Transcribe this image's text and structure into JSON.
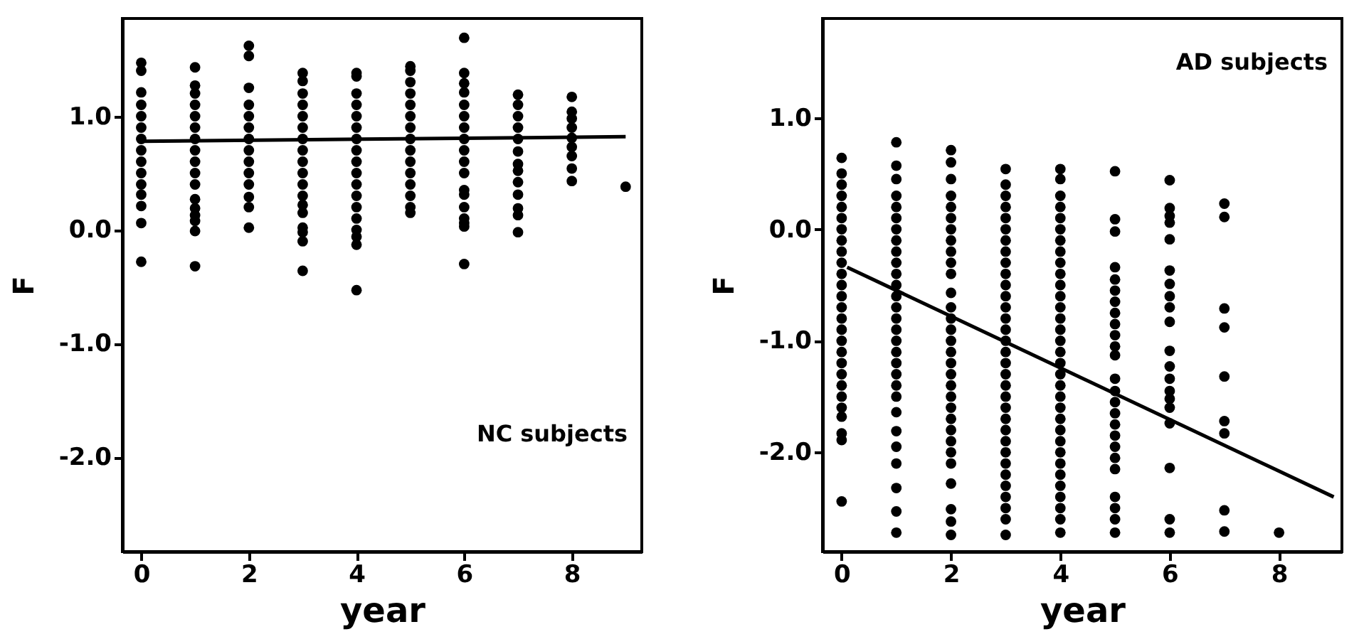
{
  "chart_data": [
    {
      "type": "scatter",
      "xlabel": "year",
      "ylabel": "F",
      "annotations": [
        "NC subjects"
      ],
      "xlim": [
        -0.35,
        9.3
      ],
      "ylim": [
        -2.83,
        1.86
      ],
      "xticks": [
        0,
        2,
        4,
        6,
        8
      ],
      "yticks": [
        {
          "value": 1,
          "label": "1.0"
        },
        {
          "value": 0,
          "label": "0.0"
        },
        {
          "value": -1,
          "label": "-1.0"
        },
        {
          "value": -2,
          "label": "-2.0"
        }
      ],
      "grid": false,
      "series": [
        {
          "color": "#000000",
          "marker": "circle",
          "x": [
            0,
            0,
            0,
            0,
            0,
            0,
            0,
            0,
            0,
            0,
            0,
            0,
            0,
            0,
            0,
            1,
            1,
            1,
            1,
            1,
            1,
            1,
            1,
            1,
            1,
            1,
            1,
            1,
            1,
            1,
            1,
            1,
            2,
            2,
            2,
            2,
            2,
            2,
            2,
            2,
            2,
            2,
            2,
            2,
            2,
            2,
            3,
            3,
            3,
            3,
            3,
            3,
            3,
            3,
            3,
            3,
            3,
            3,
            3,
            3,
            3,
            3,
            3,
            3,
            4,
            4,
            4,
            4,
            4,
            4,
            4,
            4,
            4,
            4,
            4,
            4,
            4,
            4,
            4,
            4,
            4,
            4,
            5,
            5,
            5,
            5,
            5,
            5,
            5,
            5,
            5,
            5,
            5,
            5,
            5,
            5,
            5,
            6,
            6,
            6,
            6,
            6,
            6,
            6,
            6,
            6,
            6,
            6,
            6,
            6,
            6,
            6,
            6,
            6,
            6,
            7,
            7,
            7,
            7,
            7,
            7,
            7,
            7,
            7,
            7,
            7,
            7,
            7,
            8,
            8,
            8,
            8,
            8,
            8,
            8,
            8,
            8,
            9
          ],
          "values": [
            1.47,
            1.4,
            1.21,
            1.1,
            1.0,
            0.9,
            0.8,
            0.7,
            0.6,
            0.5,
            0.4,
            0.31,
            0.21,
            0.06,
            -0.28,
            1.43,
            1.27,
            1.2,
            1.1,
            1.0,
            0.9,
            0.8,
            0.7,
            0.6,
            0.5,
            0.4,
            0.27,
            0.19,
            0.13,
            0.08,
            -0.01,
            -0.32,
            1.62,
            1.53,
            1.25,
            1.1,
            1.0,
            0.9,
            0.8,
            0.7,
            0.6,
            0.5,
            0.4,
            0.29,
            0.2,
            0.02,
            1.38,
            1.31,
            1.2,
            1.1,
            1.0,
            0.9,
            0.8,
            0.7,
            0.6,
            0.5,
            0.4,
            0.3,
            0.22,
            0.15,
            0.02,
            -0.02,
            -0.1,
            -0.36,
            1.38,
            1.35,
            1.2,
            1.1,
            1.0,
            0.9,
            0.8,
            0.7,
            0.6,
            0.5,
            0.4,
            0.3,
            0.2,
            0.1,
            0.0,
            -0.06,
            -0.13,
            -0.53,
            1.44,
            1.4,
            1.3,
            1.2,
            1.1,
            1.0,
            0.9,
            0.8,
            0.7,
            0.6,
            0.5,
            0.4,
            0.3,
            0.2,
            0.15,
            1.69,
            1.38,
            1.29,
            1.21,
            1.1,
            1.0,
            0.9,
            0.8,
            0.7,
            0.6,
            0.5,
            0.35,
            0.31,
            0.2,
            0.1,
            0.06,
            0.03,
            -0.3,
            1.19,
            1.1,
            1.0,
            0.9,
            0.8,
            0.69,
            0.58,
            0.52,
            0.42,
            0.31,
            0.19,
            0.13,
            -0.02,
            1.17,
            1.04,
            0.98,
            0.9,
            0.81,
            0.73,
            0.65,
            0.54,
            0.43,
            0.38
          ]
        },
        {
          "type": "line",
          "color": "#000000",
          "x": [
            0,
            9
          ],
          "values": [
            0.78,
            0.82
          ]
        }
      ]
    },
    {
      "type": "scatter",
      "xlabel": "year",
      "ylabel": "F",
      "annotations": [
        "AD subjects"
      ],
      "xlim": [
        -0.35,
        9.15
      ],
      "ylim": [
        -2.89,
        1.89
      ],
      "xticks": [
        0,
        2,
        4,
        6,
        8
      ],
      "yticks": [
        {
          "value": 1,
          "label": "1.0"
        },
        {
          "value": 0,
          "label": "0.0"
        },
        {
          "value": -1,
          "label": "-1.0"
        },
        {
          "value": -2,
          "label": "-2.0"
        }
      ],
      "grid": false,
      "series": [
        {
          "color": "#000000",
          "marker": "circle",
          "x": [
            0,
            0,
            0,
            0,
            0,
            0,
            0,
            0,
            0,
            0,
            0,
            0,
            0,
            0,
            0,
            0,
            0,
            0,
            0,
            0,
            0,
            0,
            0,
            0,
            0,
            0,
            0,
            1,
            1,
            1,
            1,
            1,
            1,
            1,
            1,
            1,
            1,
            1,
            1,
            1,
            1,
            1,
            1,
            1,
            1,
            1,
            1,
            1,
            1,
            1,
            1,
            1,
            1,
            1,
            1,
            1,
            2,
            2,
            2,
            2,
            2,
            2,
            2,
            2,
            2,
            2,
            2,
            2,
            2,
            2,
            2,
            2,
            2,
            2,
            2,
            2,
            2,
            2,
            2,
            2,
            2,
            2,
            2,
            2,
            2,
            2,
            2,
            3,
            3,
            3,
            3,
            3,
            3,
            3,
            3,
            3,
            3,
            3,
            3,
            3,
            3,
            3,
            3,
            3,
            3,
            3,
            3,
            3,
            3,
            3,
            3,
            3,
            3,
            3,
            3,
            3,
            3,
            3,
            3,
            3,
            4,
            4,
            4,
            4,
            4,
            4,
            4,
            4,
            4,
            4,
            4,
            4,
            4,
            4,
            4,
            4,
            4,
            4,
            4,
            4,
            4,
            4,
            4,
            4,
            4,
            4,
            4,
            4,
            4,
            4,
            4,
            4,
            4,
            5,
            5,
            5,
            5,
            5,
            5,
            5,
            5,
            5,
            5,
            5,
            5,
            5,
            5,
            5,
            5,
            5,
            5,
            5,
            5,
            5,
            5,
            5,
            5,
            5,
            6,
            6,
            6,
            6,
            6,
            6,
            6,
            6,
            6,
            6,
            6,
            6,
            6,
            6,
            6,
            6,
            6,
            6,
            6,
            6,
            7,
            7,
            7,
            7,
            7,
            7,
            7,
            7,
            7,
            8
          ],
          "values": [
            0.64,
            0.5,
            0.4,
            0.3,
            0.2,
            0.1,
            0.0,
            -0.1,
            -0.2,
            -0.3,
            -0.4,
            -0.5,
            -0.6,
            -0.7,
            -0.8,
            -0.9,
            -1.0,
            -1.1,
            -1.2,
            -1.3,
            -1.4,
            -1.5,
            -1.6,
            -1.68,
            -1.83,
            -1.89,
            -2.44,
            0.78,
            0.57,
            0.45,
            0.3,
            0.2,
            0.1,
            0.0,
            -0.1,
            -0.2,
            -0.3,
            -0.4,
            -0.5,
            -0.6,
            -0.7,
            -0.8,
            -0.9,
            -1.0,
            -1.1,
            -1.2,
            -1.3,
            -1.4,
            -1.5,
            -1.64,
            -1.81,
            -1.95,
            -2.1,
            -2.32,
            -2.53,
            -2.72,
            0.71,
            0.6,
            0.45,
            0.3,
            0.2,
            0.1,
            0.0,
            -0.1,
            -0.2,
            -0.3,
            -0.4,
            -0.57,
            -0.7,
            -0.8,
            -0.9,
            -1.0,
            -1.1,
            -1.2,
            -1.3,
            -1.4,
            -1.5,
            -1.6,
            -1.7,
            -1.8,
            -1.9,
            -2.0,
            -2.1,
            -2.28,
            -2.51,
            -2.62,
            -2.74,
            0.54,
            0.4,
            0.3,
            0.2,
            0.1,
            0.0,
            -0.1,
            -0.2,
            -0.3,
            -0.4,
            -0.5,
            -0.6,
            -0.7,
            -0.8,
            -0.9,
            -1.0,
            -1.1,
            -1.2,
            -1.3,
            -1.4,
            -1.5,
            -1.6,
            -1.7,
            -1.8,
            -1.9,
            -2.0,
            -2.1,
            -2.2,
            -2.3,
            -2.4,
            -2.5,
            -2.6,
            -2.74,
            0.54,
            0.45,
            0.3,
            0.2,
            0.1,
            0.0,
            -0.1,
            -0.2,
            -0.3,
            -0.4,
            -0.5,
            -0.6,
            -0.7,
            -0.8,
            -0.9,
            -1.0,
            -1.1,
            -1.2,
            -1.3,
            -1.4,
            -1.5,
            -1.6,
            -1.7,
            -1.8,
            -1.9,
            -2.0,
            -2.1,
            -2.2,
            -2.3,
            -2.4,
            -2.5,
            -2.6,
            -2.72,
            0.52,
            0.09,
            -0.02,
            -0.34,
            -0.45,
            -0.55,
            -0.65,
            -0.75,
            -0.85,
            -0.95,
            -1.05,
            -1.13,
            -1.34,
            -1.45,
            -1.55,
            -1.65,
            -1.75,
            -1.85,
            -1.95,
            -2.05,
            -2.15,
            -2.4,
            -2.5,
            -2.6,
            -2.72,
            0.44,
            0.19,
            0.12,
            0.06,
            -0.09,
            -0.37,
            -0.49,
            -0.6,
            -0.7,
            -0.83,
            -1.09,
            -1.23,
            -1.34,
            -1.45,
            -1.52,
            -1.6,
            -1.74,
            -2.14,
            -2.6,
            -2.72,
            0.23,
            0.11,
            -0.71,
            -0.88,
            -1.32,
            -1.72,
            -1.83,
            -2.52,
            -2.71,
            -2.72
          ]
        },
        {
          "type": "line",
          "color": "#000000",
          "x": [
            0.1,
            9.0
          ],
          "values": [
            -0.34,
            -2.4
          ]
        }
      ]
    }
  ]
}
